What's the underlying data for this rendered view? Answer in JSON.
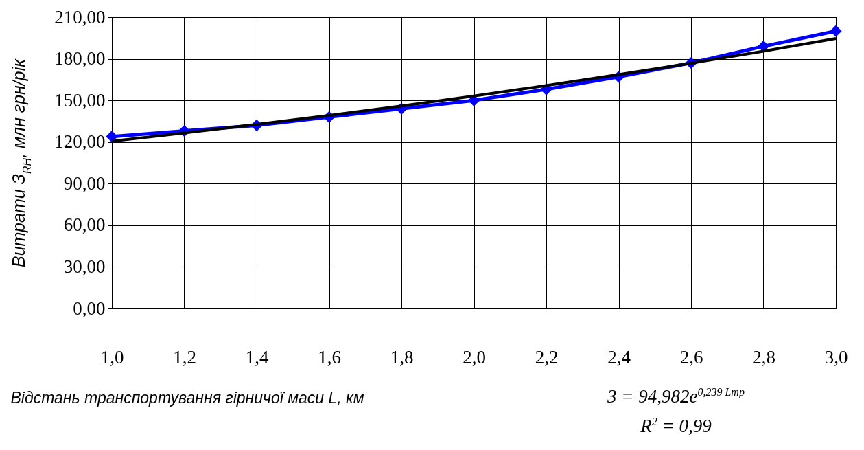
{
  "chart_data": {
    "type": "line",
    "xlabel": "Відстань транспортування гірничої маси  L, км",
    "ylabel": "Витрати З$_{RH}$, млн грн/рік",
    "xlim": [
      1,
      3
    ],
    "xticks": [
      {
        "value": 1,
        "label": "1,0"
      },
      {
        "value": 1.2,
        "label": "1,2"
      },
      {
        "value": 1.4,
        "label": "1,4"
      },
      {
        "value": 1.6,
        "label": "1,6"
      },
      {
        "value": 1.8,
        "label": "1,8"
      },
      {
        "value": 2,
        "label": "2,0"
      },
      {
        "value": 2.2,
        "label": "2,2"
      },
      {
        "value": 2.4,
        "label": "2,4"
      },
      {
        "value": 2.6,
        "label": "2,6"
      },
      {
        "value": 2.8,
        "label": "2,8"
      },
      {
        "value": 3,
        "label": "3,0"
      }
    ],
    "ylim": [
      0,
      210
    ],
    "yticks": [
      {
        "value": 0,
        "label": "0,00"
      },
      {
        "value": 30,
        "label": "30,00"
      },
      {
        "value": 60,
        "label": "60,00"
      },
      {
        "value": 90,
        "label": "90,00"
      },
      {
        "value": 120,
        "label": "120,00"
      },
      {
        "value": 150,
        "label": "150,00"
      },
      {
        "value": 180,
        "label": "180,00"
      },
      {
        "value": 210,
        "label": "210,00"
      }
    ],
    "grid": true,
    "marker": "diamond",
    "series": [
      {
        "color": "#0000ff",
        "x": [
          1,
          1.2,
          1.4,
          1.6,
          1.8,
          2,
          2.2,
          2.4,
          2.6,
          2.8,
          3
        ],
        "values": [
          124,
          128,
          132,
          138,
          144,
          150,
          158,
          167,
          177,
          189,
          200
        ]
      },
      {
        "type": "line",
        "marker": "none",
        "color": "#000000",
        "x": [
          1,
          1.2,
          1.4,
          1.6,
          1.8,
          2,
          2.2,
          2.4,
          2.6,
          2.8,
          3
        ],
        "values": [
          120.6,
          126.5,
          132.7,
          139.2,
          146.0,
          153.2,
          160.7,
          168.6,
          176.8,
          185.5,
          194.6
        ]
      }
    ],
    "annotations": [
      "З = 94,982e$^{0,239 Lmp}$",
      "R$^{2}$  = 0,99"
    ]
  }
}
